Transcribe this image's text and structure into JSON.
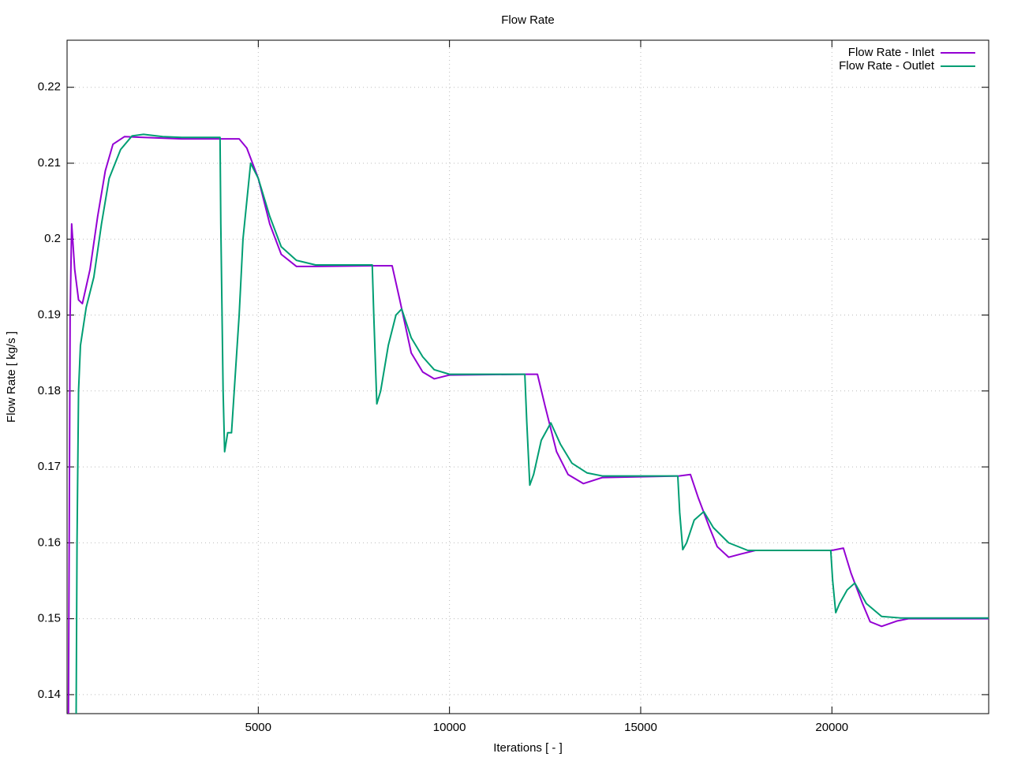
{
  "chart_data": {
    "type": "line",
    "title": "Flow Rate",
    "xlabel": "Iterations [ - ]",
    "ylabel": "Flow Rate [ kg/s ]",
    "xlim": [
      0,
      24100
    ],
    "ylim": [
      0.1375,
      0.2262
    ],
    "xticks": [
      5000,
      10000,
      15000,
      20000
    ],
    "yticks": [
      0.14,
      0.15,
      0.16,
      0.17,
      0.18,
      0.19,
      0.2,
      0.21,
      0.22
    ],
    "grid": true,
    "legend": "upper right",
    "series": [
      {
        "name": "Flow Rate - Inlet",
        "color": "#9400d3",
        "x": [
          30,
          80,
          120,
          200,
          300,
          400,
          600,
          800,
          1000,
          1200,
          1500,
          2000,
          3000,
          4000,
          4500,
          4700,
          5000,
          5300,
          5600,
          6000,
          6500,
          8000,
          8500,
          8700,
          9000,
          9300,
          9600,
          10000,
          12000,
          12300,
          12500,
          12800,
          13100,
          13500,
          14000,
          16000,
          16300,
          16500,
          16800,
          17000,
          17300,
          17600,
          18000,
          20000,
          20300,
          20500,
          20800,
          21000,
          21300,
          21700,
          22000,
          24100
        ],
        "values": [
          0.13,
          0.19,
          0.202,
          0.196,
          0.192,
          0.1915,
          0.196,
          0.203,
          0.209,
          0.2125,
          0.2135,
          0.2134,
          0.2132,
          0.2132,
          0.2132,
          0.212,
          0.208,
          0.202,
          0.198,
          0.1964,
          0.1964,
          0.1965,
          0.1965,
          0.192,
          0.185,
          0.1825,
          0.1816,
          0.1821,
          0.1822,
          0.1822,
          0.178,
          0.172,
          0.169,
          0.1678,
          0.1686,
          0.1688,
          0.169,
          0.166,
          0.162,
          0.1595,
          0.1581,
          0.1585,
          0.159,
          0.159,
          0.1593,
          0.156,
          0.152,
          0.1496,
          0.149,
          0.1497,
          0.15,
          0.15
        ]
      },
      {
        "name": "Flow Rate - Outlet",
        "color": "#009e73",
        "x": [
          230,
          260,
          300,
          350,
          500,
          700,
          900,
          1100,
          1400,
          1700,
          2000,
          2500,
          3000,
          4000,
          4020,
          4080,
          4120,
          4200,
          4300,
          4500,
          4600,
          4800,
          5000,
          5300,
          5600,
          6000,
          6500,
          7980,
          8020,
          8100,
          8200,
          8400,
          8600,
          8750,
          9000,
          9300,
          9600,
          10000,
          11970,
          12020,
          12100,
          12200,
          12400,
          12650,
          12900,
          13200,
          13600,
          14000,
          15970,
          16020,
          16100,
          16200,
          16400,
          16650,
          16900,
          17300,
          17800,
          19970,
          20020,
          20100,
          20200,
          20400,
          20600,
          20900,
          21300,
          21800,
          24100
        ],
        "values": [
          0.13,
          0.16,
          0.18,
          0.186,
          0.191,
          0.195,
          0.202,
          0.208,
          0.2118,
          0.2136,
          0.2138,
          0.2135,
          0.2134,
          0.2134,
          0.202,
          0.18,
          0.172,
          0.1745,
          0.1745,
          0.19,
          0.2,
          0.21,
          0.208,
          0.203,
          0.199,
          0.1972,
          0.1966,
          0.1966,
          0.19,
          0.1783,
          0.18,
          0.186,
          0.19,
          0.1908,
          0.187,
          0.1845,
          0.1828,
          0.1822,
          0.1822,
          0.176,
          0.1676,
          0.169,
          0.1735,
          0.1758,
          0.173,
          0.1705,
          0.1692,
          0.1688,
          0.1688,
          0.164,
          0.1591,
          0.16,
          0.163,
          0.1641,
          0.162,
          0.16,
          0.159,
          0.159,
          0.155,
          0.1508,
          0.152,
          0.1538,
          0.1547,
          0.152,
          0.1503,
          0.1501,
          0.1501
        ]
      }
    ]
  }
}
